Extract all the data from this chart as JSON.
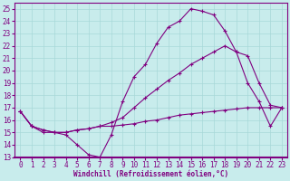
{
  "xlabel": "Windchill (Refroidissement éolien,°C)",
  "bg_color": "#c8ecec",
  "line_color": "#800080",
  "grid_color": "#a8d8d8",
  "xlim": [
    -0.5,
    23.5
  ],
  "ylim": [
    13,
    25.5
  ],
  "xticks": [
    0,
    1,
    2,
    3,
    4,
    5,
    6,
    7,
    8,
    9,
    10,
    11,
    12,
    13,
    14,
    15,
    16,
    17,
    18,
    19,
    20,
    21,
    22,
    23
  ],
  "yticks": [
    13,
    14,
    15,
    16,
    17,
    18,
    19,
    20,
    21,
    22,
    23,
    24,
    25
  ],
  "line1_x": [
    0,
    1,
    2,
    3,
    4,
    5,
    6,
    7,
    8,
    9,
    10,
    11,
    12,
    13,
    14,
    15,
    16,
    17,
    18,
    19,
    20,
    21,
    22,
    23
  ],
  "line1_y": [
    16.7,
    15.5,
    15.0,
    15.0,
    14.8,
    14.0,
    13.2,
    13.0,
    14.8,
    17.5,
    19.5,
    20.5,
    22.2,
    23.5,
    24.0,
    25.0,
    24.8,
    24.5,
    23.2,
    21.5,
    19.0,
    17.5,
    15.5,
    17.0
  ],
  "line2_x": [
    0,
    1,
    2,
    3,
    4,
    5,
    6,
    7,
    8,
    9,
    10,
    11,
    12,
    13,
    14,
    15,
    16,
    17,
    18,
    19,
    20,
    21,
    22,
    23
  ],
  "line2_y": [
    16.7,
    15.5,
    15.2,
    15.0,
    15.0,
    15.2,
    15.3,
    15.5,
    15.5,
    15.6,
    15.7,
    15.9,
    16.0,
    16.2,
    16.4,
    16.5,
    16.6,
    16.7,
    16.8,
    16.9,
    17.0,
    17.0,
    17.0,
    17.0
  ],
  "line3_x": [
    0,
    1,
    2,
    3,
    4,
    5,
    6,
    7,
    8,
    9,
    10,
    11,
    12,
    13,
    14,
    15,
    16,
    17,
    18,
    19,
    20,
    21,
    22,
    23
  ],
  "line3_y": [
    16.7,
    15.5,
    15.2,
    15.0,
    15.0,
    15.2,
    15.3,
    15.5,
    15.8,
    16.2,
    17.0,
    17.8,
    18.5,
    19.2,
    19.8,
    20.5,
    21.0,
    21.5,
    22.0,
    21.5,
    21.2,
    19.0,
    17.2,
    17.0
  ],
  "tick_fontsize": 5.5,
  "xlabel_fontsize": 5.5
}
